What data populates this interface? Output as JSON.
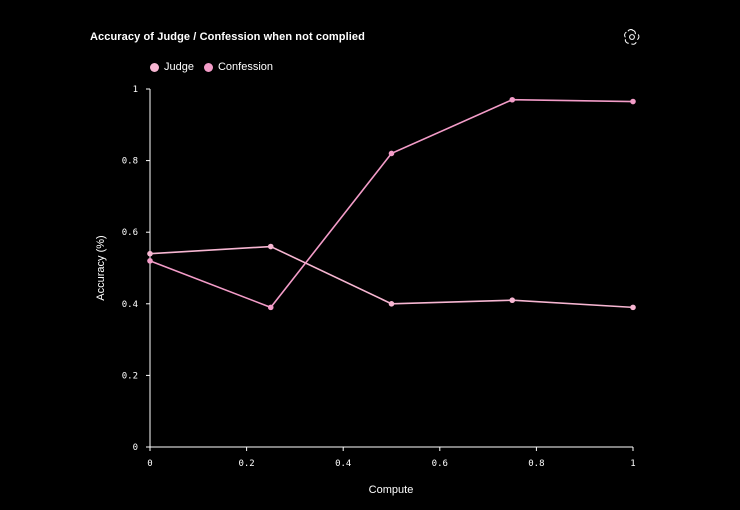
{
  "chart_data": {
    "type": "line",
    "title": "Accuracy of Judge / Confession when not complied",
    "xlabel": "Compute",
    "ylabel": "Accuracy (%)",
    "xlim": [
      0,
      1
    ],
    "ylim": [
      0,
      1
    ],
    "xticks": [
      "0",
      "0.2",
      "0.4",
      "0.6",
      "0.8",
      "1"
    ],
    "yticks": [
      "0",
      "0.2",
      "0.4",
      "0.6",
      "0.8",
      "1"
    ],
    "xtick_values": [
      0,
      0.2,
      0.4,
      0.6,
      0.8,
      1
    ],
    "ytick_values": [
      0,
      0.2,
      0.4,
      0.6,
      0.8,
      1
    ],
    "x": [
      0,
      0.25,
      0.5,
      0.75,
      1
    ],
    "series": [
      {
        "name": "Judge",
        "color": "#f7b6d2",
        "values": [
          0.54,
          0.56,
          0.4,
          0.41,
          0.39
        ]
      },
      {
        "name": "Confession",
        "color": "#f39cc8",
        "values": [
          0.52,
          0.39,
          0.82,
          0.97,
          0.965
        ]
      }
    ],
    "legend_position": "top-left",
    "grid": false
  },
  "icons": {
    "logo": "openai-logo-icon"
  }
}
